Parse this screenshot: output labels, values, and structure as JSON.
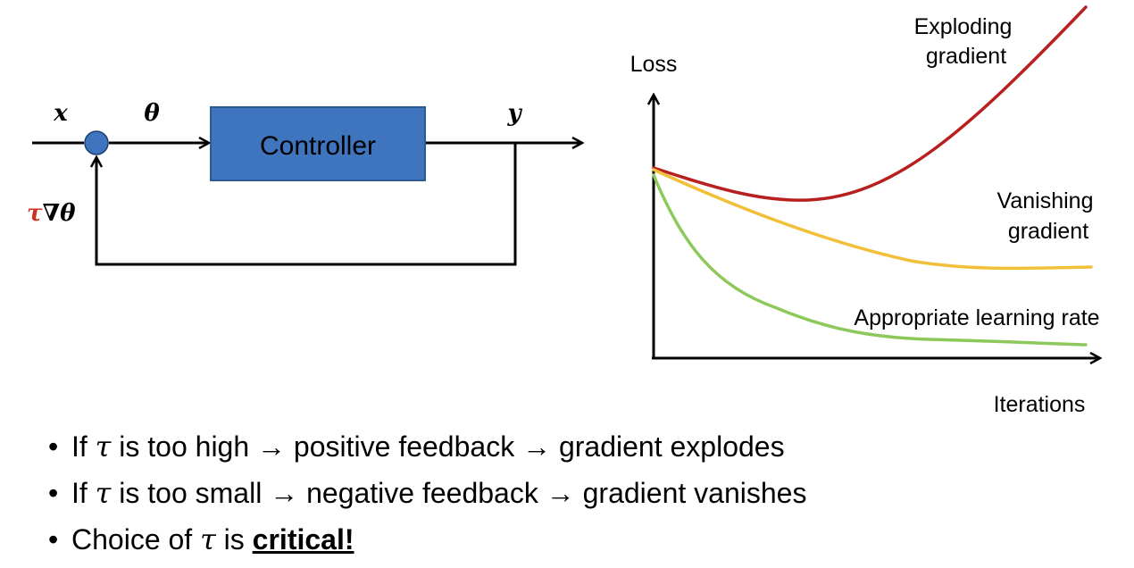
{
  "diagram": {
    "input_label": "x",
    "theta_label": "θ",
    "output_label": "y",
    "feedback_tau": "τ",
    "feedback_grad": "∇θ",
    "controller_label": "Controller",
    "colors": {
      "controller_fill": "#3f74bf",
      "controller_stroke": "#2c5a94",
      "sum_node_fill": "#3f74bf",
      "tau_red": "#d0301f"
    }
  },
  "chart_data": {
    "type": "line",
    "ylabel": "Loss",
    "xlabel": "Iterations",
    "grid": false,
    "axis_ticks": false,
    "series": [
      {
        "name": "Exploding gradient",
        "name_lines": [
          "Exploding",
          "gradient"
        ],
        "color": "#b8201f",
        "trend": "dips slightly then rises steeply"
      },
      {
        "name": "Vanishing gradient",
        "name_lines": [
          "Vanishing",
          "gradient"
        ],
        "color": "#f2bf3a",
        "trend": "decreases slowly then plateaus high"
      },
      {
        "name": "Appropriate learning rate",
        "name_lines": [
          "Appropriate learning rate"
        ],
        "color": "#8dc85a",
        "trend": "decreases quickly then plateaus low"
      }
    ]
  },
  "bullets": {
    "b1_pre": "If ",
    "b1_tau": "τ",
    "b1_post": " is too high → positive feedback → gradient explodes",
    "b2_pre": "If ",
    "b2_tau": "τ",
    "b2_post": " is too small → negative feedback → gradient vanishes",
    "b3_pre": "Choice of ",
    "b3_tau": "τ",
    "b3_mid": " is ",
    "b3_emph": "critical!"
  }
}
